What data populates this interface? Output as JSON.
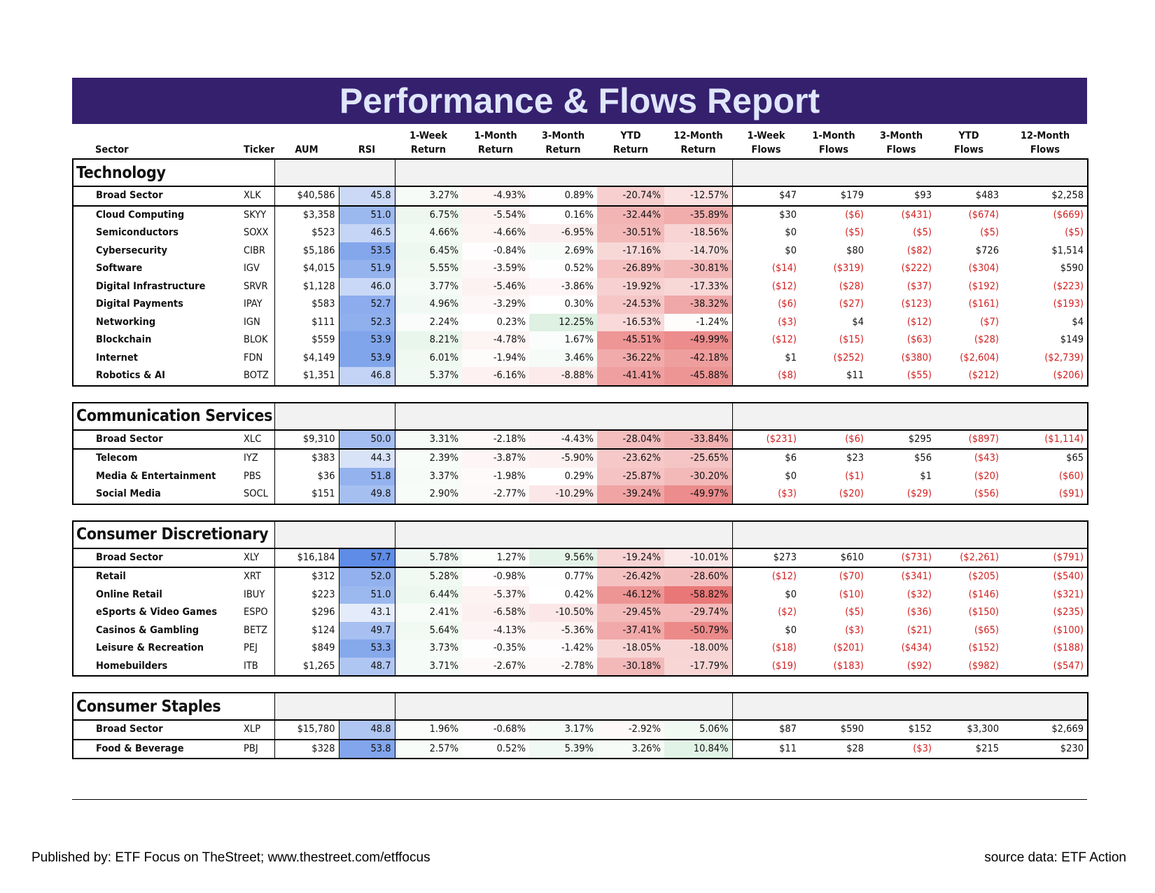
{
  "title": "Performance & Flows Report",
  "headers": {
    "sector": "Sector",
    "ticker": "Ticker",
    "aum": "AUM",
    "rsi": "RSI",
    "w1_return": [
      "1-Week",
      "Return"
    ],
    "m1_return": [
      "1-Month",
      "Return"
    ],
    "m3_return": [
      "3-Month",
      "Return"
    ],
    "ytd_return": [
      "YTD",
      "Return"
    ],
    "m12_return": [
      "12-Month",
      "Return"
    ],
    "w1_flows": [
      "1-Week",
      "Flows"
    ],
    "m1_flows": [
      "1-Month",
      "Flows"
    ],
    "m3_flows": [
      "3-Month",
      "Flows"
    ],
    "ytd_flows": [
      "YTD",
      "Flows"
    ],
    "m12_flows": [
      "12-Month",
      "Flows"
    ]
  },
  "groups": [
    {
      "name": "Technology",
      "rows": [
        [
          "Broad Sector",
          "XLK",
          "$40,586",
          "45.8",
          "3.27%",
          "-4.93%",
          "0.89%",
          "-20.74%",
          "-12.57%",
          "$47",
          "$179",
          "$93",
          "$483",
          "$2,258"
        ],
        [
          "Cloud Computing",
          "SKYY",
          "$3,358",
          "51.0",
          "6.75%",
          "-5.54%",
          "0.16%",
          "-32.44%",
          "-35.89%",
          "$30",
          "($6)",
          "($431)",
          "($674)",
          "($669)"
        ],
        [
          "Semiconductors",
          "SOXX",
          "$523",
          "46.5",
          "4.66%",
          "-4.66%",
          "-6.95%",
          "-30.51%",
          "-18.56%",
          "$0",
          "($5)",
          "($5)",
          "($5)",
          "($5)"
        ],
        [
          "Cybersecurity",
          "CIBR",
          "$5,186",
          "53.5",
          "6.45%",
          "-0.84%",
          "2.69%",
          "-17.16%",
          "-14.70%",
          "$0",
          "$80",
          "($82)",
          "$726",
          "$1,514"
        ],
        [
          "Software",
          "IGV",
          "$4,015",
          "51.9",
          "5.55%",
          "-3.59%",
          "0.52%",
          "-26.89%",
          "-30.81%",
          "($14)",
          "($319)",
          "($222)",
          "($304)",
          "$590"
        ],
        [
          "Digital Infrastructure",
          "SRVR",
          "$1,128",
          "46.0",
          "3.77%",
          "-5.46%",
          "-3.86%",
          "-19.92%",
          "-17.33%",
          "($12)",
          "($28)",
          "($37)",
          "($192)",
          "($223)"
        ],
        [
          "Digital Payments",
          "IPAY",
          "$583",
          "52.7",
          "4.96%",
          "-3.29%",
          "0.30%",
          "-24.53%",
          "-38.32%",
          "($6)",
          "($27)",
          "($123)",
          "($161)",
          "($193)"
        ],
        [
          "Networking",
          "IGN",
          "$111",
          "52.3",
          "2.24%",
          "0.23%",
          "12.25%",
          "-16.53%",
          "-1.24%",
          "($3)",
          "$4",
          "($12)",
          "($7)",
          "$4"
        ],
        [
          "Blockchain",
          "BLOK",
          "$559",
          "53.9",
          "8.21%",
          "-4.78%",
          "1.67%",
          "-45.51%",
          "-49.99%",
          "($12)",
          "($15)",
          "($63)",
          "($28)",
          "$149"
        ],
        [
          "Internet",
          "FDN",
          "$4,149",
          "53.9",
          "6.01%",
          "-1.94%",
          "3.46%",
          "-36.22%",
          "-42.18%",
          "$1",
          "($252)",
          "($380)",
          "($2,604)",
          "($2,739)"
        ],
        [
          "Robotics & AI",
          "BOTZ",
          "$1,351",
          "46.8",
          "5.37%",
          "-6.16%",
          "-8.88%",
          "-41.41%",
          "-45.88%",
          "($8)",
          "$11",
          "($55)",
          "($212)",
          "($206)"
        ]
      ]
    },
    {
      "name": "Communication Services",
      "rows": [
        [
          "Broad Sector",
          "XLC",
          "$9,310",
          "50.0",
          "3.31%",
          "-2.18%",
          "-4.43%",
          "-28.04%",
          "-33.84%",
          "($231)",
          "($6)",
          "$295",
          "($897)",
          "($1,114)"
        ],
        [
          "Telecom",
          "IYZ",
          "$383",
          "44.3",
          "2.39%",
          "-3.87%",
          "-5.90%",
          "-23.62%",
          "-25.65%",
          "$6",
          "$23",
          "$56",
          "($43)",
          "$65"
        ],
        [
          "Media & Entertainment",
          "PBS",
          "$36",
          "51.8",
          "3.37%",
          "-1.98%",
          "0.29%",
          "-25.87%",
          "-30.20%",
          "$0",
          "($1)",
          "$1",
          "($20)",
          "($60)"
        ],
        [
          "Social Media",
          "SOCL",
          "$151",
          "49.8",
          "2.90%",
          "-2.77%",
          "-10.29%",
          "-39.24%",
          "-49.97%",
          "($3)",
          "($20)",
          "($29)",
          "($56)",
          "($91)"
        ]
      ]
    },
    {
      "name": "Consumer Discretionary",
      "rows": [
        [
          "Broad Sector",
          "XLY",
          "$16,184",
          "57.7",
          "5.78%",
          "1.27%",
          "9.56%",
          "-19.24%",
          "-10.01%",
          "$273",
          "$610",
          "($731)",
          "($2,261)",
          "($791)"
        ],
        [
          "Retail",
          "XRT",
          "$312",
          "52.0",
          "5.28%",
          "-0.98%",
          "0.77%",
          "-26.42%",
          "-28.60%",
          "($12)",
          "($70)",
          "($341)",
          "($205)",
          "($540)"
        ],
        [
          "Online Retail",
          "IBUY",
          "$223",
          "51.0",
          "6.44%",
          "-5.37%",
          "0.42%",
          "-46.12%",
          "-58.82%",
          "$0",
          "($10)",
          "($32)",
          "($146)",
          "($321)"
        ],
        [
          "eSports & Video Games",
          "ESPO",
          "$296",
          "43.1",
          "2.41%",
          "-6.58%",
          "-10.50%",
          "-29.45%",
          "-29.74%",
          "($2)",
          "($5)",
          "($36)",
          "($150)",
          "($235)"
        ],
        [
          "Casinos & Gambling",
          "BETZ",
          "$124",
          "49.7",
          "5.64%",
          "-4.13%",
          "-5.36%",
          "-37.41%",
          "-50.79%",
          "$0",
          "($3)",
          "($21)",
          "($65)",
          "($100)"
        ],
        [
          "Leisure & Recreation",
          "PEJ",
          "$849",
          "53.3",
          "3.73%",
          "-0.35%",
          "-1.42%",
          "-18.05%",
          "-18.00%",
          "($18)",
          "($201)",
          "($434)",
          "($152)",
          "($188)"
        ],
        [
          "Homebuilders",
          "ITB",
          "$1,265",
          "48.7",
          "3.71%",
          "-2.67%",
          "-2.78%",
          "-30.18%",
          "-17.79%",
          "($19)",
          "($183)",
          "($92)",
          "($982)",
          "($547)"
        ]
      ]
    },
    {
      "name": "Consumer Staples",
      "rows": [
        [
          "Broad Sector",
          "XLP",
          "$15,780",
          "48.8",
          "1.96%",
          "-0.68%",
          "3.17%",
          "-2.92%",
          "5.06%",
          "$87",
          "$590",
          "$152",
          "$3,300",
          "$2,669"
        ],
        [
          "Food & Beverage",
          "PBJ",
          "$328",
          "53.8",
          "2.57%",
          "0.52%",
          "5.39%",
          "3.26%",
          "10.84%",
          "$11",
          "$28",
          "($3)",
          "$215",
          "$230"
        ]
      ]
    }
  ],
  "footer": {
    "published": "Published by: ETF Focus on TheStreet; www.thestreet.com/etffocus",
    "source": "source data: ETF Action"
  },
  "colors": {
    "banner": "#35206e",
    "banner_text": "#dfe6fa",
    "negative_flow": "#d11f1f",
    "rsi_base": "#5b8ae6",
    "return_neg": "#e45c5c",
    "return_pos": "#63be7b"
  }
}
